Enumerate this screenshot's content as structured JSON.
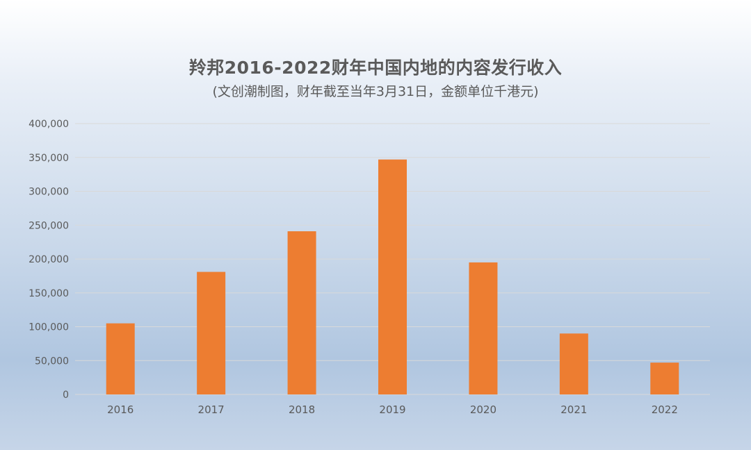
{
  "chart_data": {
    "type": "bar",
    "title": "羚邦2016-2022财年中国内地的内容发行收入",
    "subtitle": "(文创潮制图，财年截至当年3月31日，金额单位千港元)",
    "categories": [
      "2016",
      "2017",
      "2018",
      "2019",
      "2020",
      "2021",
      "2022"
    ],
    "values": [
      105000,
      181000,
      241000,
      347000,
      195000,
      90000,
      47000
    ],
    "ylim": [
      0,
      400000
    ],
    "yticks": [
      0,
      50000,
      100000,
      150000,
      200000,
      250000,
      300000,
      350000,
      400000
    ],
    "ytick_labels": [
      "0",
      "50,000",
      "100,000",
      "150,000",
      "200,000",
      "250,000",
      "300,000",
      "350,000",
      "400,000"
    ],
    "grid": true,
    "legend": "none",
    "colors": {
      "bar": "#ed7d31",
      "grid": "#d9d9d9",
      "axis_text": "#595959",
      "title": "#5a5a5a"
    }
  }
}
